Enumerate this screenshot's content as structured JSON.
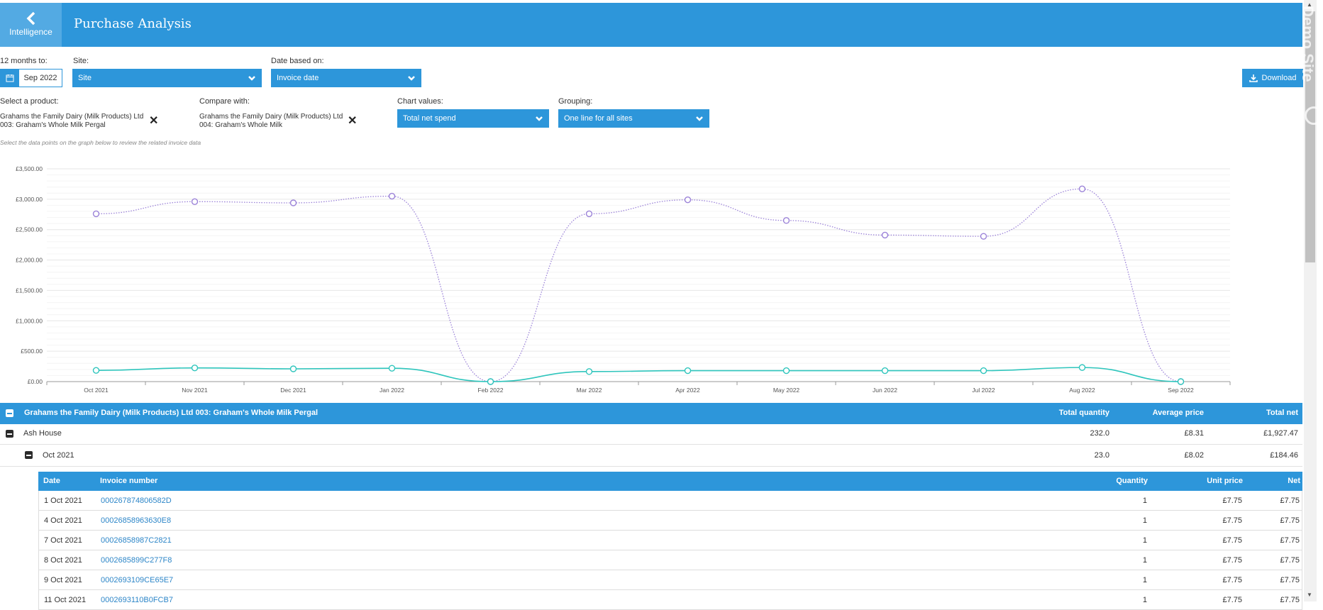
{
  "header": {
    "back_label": "Intelligence",
    "title": "Purchase Analysis"
  },
  "filters": {
    "months_label": "12 months to:",
    "month_value": "Sep 2022",
    "site_label": "Site:",
    "site_value": "Site",
    "date_label": "Date based on:",
    "date_value": "Invoice date",
    "download_label": "Download",
    "product_label": "Select a product:",
    "product_line1": "Grahams the Family Dairy (Milk Products) Ltd",
    "product_line2": "003: Graham's Whole Milk Pergal",
    "compare_label": "Compare with:",
    "compare_line1": "Grahams the Family Dairy (Milk Products) Ltd",
    "compare_line2": "004: Graham's Whole Milk",
    "chart_values_label": "Chart values:",
    "chart_values_value": "Total net spend",
    "grouping_label": "Grouping:",
    "grouping_value": "One line for all sites",
    "hint": "Select the data points on the graph below to review the related invoice data"
  },
  "watermark": "Demo Site",
  "chart_data": {
    "type": "line",
    "categories": [
      "Oct 2021",
      "Nov 2021",
      "Dec 2021",
      "Jan 2022",
      "Feb 2022",
      "Mar 2022",
      "Apr 2022",
      "May 2022",
      "Jun 2022",
      "Jul 2022",
      "Aug 2022",
      "Sep 2022"
    ],
    "yticks": [
      "£0.00",
      "£500.00",
      "£1,000.00",
      "£1,500.00",
      "£2,000.00",
      "£2,500.00",
      "£3,000.00",
      "£3,500.00"
    ],
    "ylim": [
      0,
      3500
    ],
    "grid": true,
    "series": [
      {
        "values": [
          2760,
          2960,
          2940,
          3050,
          0,
          2760,
          2990,
          2650,
          2410,
          2390,
          3170,
          0
        ],
        "color": "#9b82d8",
        "style": "dotted"
      },
      {
        "values": [
          184,
          225,
          210,
          220,
          0,
          165,
          180,
          180,
          180,
          180,
          232,
          0
        ],
        "color": "#2ec5bc",
        "style": "solid"
      }
    ]
  },
  "table": {
    "group_title": "Grahams the Family Dairy (Milk Products) Ltd 003: Graham's Whole Milk Pergal",
    "col_qty": "Total quantity",
    "col_avg": "Average price",
    "col_net": "Total net",
    "site_row": {
      "name": "Ash House",
      "qty": "232.0",
      "avg": "£8.31",
      "net": "£1,927.47"
    },
    "month_row": {
      "name": "Oct 2021",
      "qty": "23.0",
      "avg": "£8.02",
      "net": "£184.46"
    },
    "invoice_headers": {
      "date": "Date",
      "invoice": "Invoice number",
      "qty": "Quantity",
      "unit": "Unit price",
      "net": "Net"
    },
    "invoices": [
      {
        "date": "1 Oct 2021",
        "invoice": "000267874806582D",
        "qty": "1",
        "unit": "£7.75",
        "net": "£7.75"
      },
      {
        "date": "4 Oct 2021",
        "invoice": "00026858963630E8",
        "qty": "1",
        "unit": "£7.75",
        "net": "£7.75"
      },
      {
        "date": "7 Oct 2021",
        "invoice": "00026858987C2821",
        "qty": "1",
        "unit": "£7.75",
        "net": "£7.75"
      },
      {
        "date": "8 Oct 2021",
        "invoice": "0002685899C277F8",
        "qty": "1",
        "unit": "£7.75",
        "net": "£7.75"
      },
      {
        "date": "9 Oct 2021",
        "invoice": "0002693109CE65E7",
        "qty": "1",
        "unit": "£7.75",
        "net": "£7.75"
      },
      {
        "date": "11 Oct 2021",
        "invoice": "0002693110B0FCB7",
        "qty": "1",
        "unit": "£7.75",
        "net": "£7.75"
      }
    ]
  }
}
